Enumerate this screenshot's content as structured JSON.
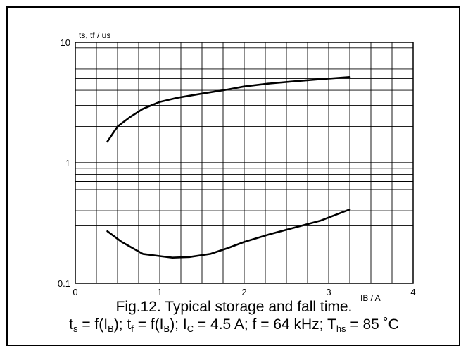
{
  "chart_data": {
    "type": "line",
    "ylabel": "ts, tf / us",
    "xlabel": "IB / A",
    "y_scale": "log",
    "xlim": [
      0,
      4
    ],
    "ylim": [
      0.1,
      10
    ],
    "x_ticks": [
      "0",
      "1",
      "2",
      "3",
      "4"
    ],
    "y_ticks": [
      "0.1",
      "1",
      "10"
    ],
    "grid": true,
    "series": [
      {
        "x": [
          0.38,
          0.5,
          0.65,
          0.8,
          1.0,
          1.2,
          1.5,
          1.8,
          2.0,
          2.3,
          2.6,
          3.0,
          3.25
        ],
        "values": [
          1.5,
          2.0,
          2.4,
          2.8,
          3.2,
          3.45,
          3.75,
          4.05,
          4.3,
          4.55,
          4.75,
          5.0,
          5.15
        ]
      },
      {
        "x": [
          0.38,
          0.55,
          0.8,
          1.0,
          1.15,
          1.35,
          1.6,
          1.8,
          2.0,
          2.3,
          2.6,
          2.9,
          3.25
        ],
        "values": [
          0.27,
          0.22,
          0.175,
          0.168,
          0.163,
          0.165,
          0.175,
          0.195,
          0.22,
          0.255,
          0.29,
          0.33,
          0.41
        ]
      }
    ]
  },
  "caption": {
    "line1": "Fig.12.  Typical storage and fall time.",
    "t_s": "t",
    "t_s_sub": "s",
    "eq1": " = f(I",
    "ib_sub": "B",
    "eq1_end": "); t",
    "t_f_sub": "f",
    "eq2": " = f(I",
    "ib_sub2": "B",
    "eq2_end": "); I",
    "ic_sub": "C",
    "eq3": " = 4.5 A; f = 64 kHz; T",
    "ths_sub": "hs",
    "eq4": " = 85 ˚C"
  }
}
